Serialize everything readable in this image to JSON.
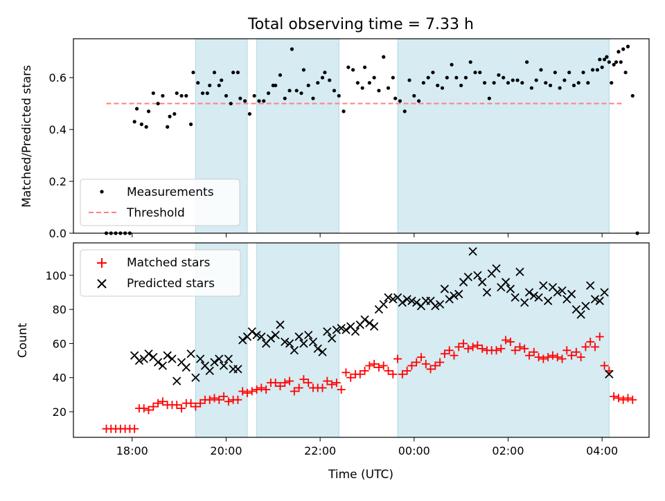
{
  "figure": {
    "title": "Total observing time = 7.33 h",
    "xlabel": "Time (UTC)",
    "xticks": [
      "18:00",
      "20:00",
      "22:00",
      "00:00",
      "02:00",
      "04:00"
    ],
    "xtick_hours": [
      18,
      20,
      22,
      24,
      26,
      28
    ],
    "xlim": [
      16.75,
      29.0
    ],
    "shaded_intervals": [
      [
        19.35,
        20.45
      ],
      [
        20.65,
        22.4
      ],
      [
        23.65,
        28.15
      ]
    ],
    "shade_color": "#add8e6"
  },
  "chart_data": [
    {
      "type": "scatter",
      "ylabel": "Matched/Predicted stars",
      "ylim": [
        0,
        0.75
      ],
      "yticks": [
        0.0,
        0.2,
        0.4,
        0.6
      ],
      "ytick_labels": [
        "0.0",
        "0.2",
        "0.4",
        "0.6"
      ],
      "legend": {
        "placement": "lower-left",
        "entries": [
          "Measurements",
          "Threshold"
        ]
      },
      "threshold": {
        "name": "Threshold",
        "value": 0.5,
        "x_range": [
          17.45,
          28.45
        ],
        "color": "#ff7f7f"
      },
      "series": [
        {
          "name": "Measurements",
          "color": "#000000",
          "x": [
            17.45,
            17.55,
            17.65,
            17.75,
            17.85,
            17.95,
            18.05,
            18.1,
            18.2,
            18.3,
            18.35,
            18.45,
            18.55,
            18.65,
            18.75,
            18.8,
            18.9,
            18.95,
            19.05,
            19.15,
            19.25,
            19.3,
            19.4,
            19.5,
            19.6,
            19.65,
            19.75,
            19.85,
            19.9,
            20.0,
            20.1,
            20.15,
            20.25,
            20.3,
            20.4,
            20.5,
            20.6,
            20.7,
            20.8,
            20.9,
            21.0,
            21.05,
            21.15,
            21.25,
            21.35,
            21.4,
            21.5,
            21.6,
            21.65,
            21.75,
            21.85,
            21.95,
            22.05,
            22.1,
            22.2,
            22.3,
            22.4,
            22.5,
            22.6,
            22.7,
            22.8,
            22.9,
            22.95,
            23.05,
            23.15,
            23.25,
            23.35,
            23.45,
            23.55,
            23.6,
            23.7,
            23.8,
            23.9,
            24.0,
            24.1,
            24.2,
            24.3,
            24.4,
            24.5,
            24.6,
            24.7,
            24.8,
            24.9,
            25.0,
            25.1,
            25.2,
            25.3,
            25.4,
            25.5,
            25.6,
            25.7,
            25.8,
            25.9,
            26.0,
            26.1,
            26.2,
            26.3,
            26.4,
            26.5,
            26.6,
            26.7,
            26.8,
            26.9,
            27.0,
            27.1,
            27.2,
            27.3,
            27.4,
            27.5,
            27.6,
            27.7,
            27.8,
            27.9,
            28.0,
            28.1,
            28.2,
            28.3,
            28.4,
            28.5
          ],
          "y": [
            0.0,
            0.0,
            0.0,
            0.0,
            0.0,
            0.0,
            0.43,
            0.48,
            0.42,
            0.41,
            0.47,
            0.54,
            0.5,
            0.53,
            0.41,
            0.45,
            0.46,
            0.54,
            0.53,
            0.53,
            0.42,
            0.62,
            0.58,
            0.54,
            0.54,
            0.57,
            0.62,
            0.57,
            0.59,
            0.53,
            0.5,
            0.62,
            0.62,
            0.52,
            0.51,
            0.46,
            0.53,
            0.51,
            0.51,
            0.54,
            0.57,
            0.57,
            0.61,
            0.52,
            0.55,
            0.71,
            0.55,
            0.54,
            0.63,
            0.57,
            0.52,
            0.58,
            0.6,
            0.62,
            0.59,
            0.55,
            0.53,
            0.47,
            0.64,
            0.63,
            0.58,
            0.56,
            0.64,
            0.58,
            0.6,
            0.55,
            0.68,
            0.56,
            0.6,
            0.52,
            0.51,
            0.47,
            0.59,
            0.53,
            0.51,
            0.58,
            0.6,
            0.62,
            0.57,
            0.56,
            0.6,
            0.65,
            0.6,
            0.57,
            0.6,
            0.66,
            0.62,
            0.62,
            0.58,
            0.52,
            0.58,
            0.61,
            0.6,
            0.58,
            0.59,
            0.59,
            0.58,
            0.66,
            0.56,
            0.59,
            0.63,
            0.58,
            0.57,
            0.62,
            0.56,
            0.59,
            0.62,
            0.57,
            0.58,
            0.62,
            0.58,
            0.63,
            0.63,
            0.64,
            0.68,
            0.58,
            0.66,
            0.66,
            0.62
          ],
          "x_extra": [
            27.95,
            28.05,
            28.15,
            28.25,
            28.35,
            28.45,
            28.55,
            28.65,
            28.75
          ],
          "y_extra": [
            0.67,
            0.67,
            0.66,
            0.65,
            0.7,
            0.71,
            0.72,
            0.53,
            0.0
          ]
        }
      ]
    },
    {
      "type": "scatter",
      "ylabel": "Count",
      "ylim": [
        5,
        119
      ],
      "yticks": [
        20,
        40,
        60,
        80,
        100
      ],
      "ytick_labels": [
        "20",
        "40",
        "60",
        "80",
        "100"
      ],
      "legend": {
        "placement": "top-left",
        "entries": [
          "Matched stars",
          "Predicted stars"
        ]
      },
      "series": [
        {
          "name": "Matched stars",
          "marker": "plus",
          "color": "#ff0000",
          "x": [
            17.45,
            17.55,
            17.65,
            17.75,
            17.85,
            17.95,
            18.05,
            18.15,
            18.25,
            18.35,
            18.45,
            18.55,
            18.65,
            18.75,
            18.85,
            18.95,
            19.05,
            19.15,
            19.25,
            19.35,
            19.45,
            19.55,
            19.65,
            19.75,
            19.85,
            19.95,
            20.05,
            20.15,
            20.25,
            20.35,
            20.45,
            20.55,
            20.65,
            20.75,
            20.85,
            20.95,
            21.05,
            21.15,
            21.25,
            21.35,
            21.45,
            21.55,
            21.65,
            21.75,
            21.85,
            21.95,
            22.05,
            22.15,
            22.25,
            22.35,
            22.45,
            22.55,
            22.65,
            22.75,
            22.85,
            22.95,
            23.05,
            23.15,
            23.25,
            23.35,
            23.45,
            23.55,
            23.65,
            23.75,
            23.85,
            23.95,
            24.05,
            24.15,
            24.25,
            24.35,
            24.45,
            24.55,
            24.65,
            24.75,
            24.85,
            24.95,
            25.05,
            25.15,
            25.25,
            25.35,
            25.45,
            25.55,
            25.65,
            25.75,
            25.85,
            25.95,
            26.05,
            26.15,
            26.25,
            26.35,
            26.45,
            26.55,
            26.65,
            26.75,
            26.85,
            26.95,
            27.05,
            27.15,
            27.25,
            27.35,
            27.45,
            27.55,
            27.65,
            27.75,
            27.85,
            27.95,
            28.05,
            28.15,
            28.25,
            28.35,
            28.45
          ],
          "y": [
            10,
            10,
            10,
            10,
            10,
            10,
            10,
            22,
            22,
            21,
            23,
            25,
            26,
            24,
            24,
            24,
            22,
            25,
            25,
            23,
            25,
            27,
            27,
            28,
            27,
            29,
            26,
            27,
            27,
            32,
            31,
            32,
            33,
            34,
            33,
            37,
            37,
            35,
            37,
            38,
            32,
            34,
            39,
            37,
            34,
            34,
            34,
            38,
            36,
            37,
            33,
            43,
            40,
            42,
            42,
            44,
            47,
            48,
            46,
            47,
            44,
            42,
            51,
            42,
            44,
            47,
            49,
            52,
            48,
            45,
            47,
            49,
            54,
            56,
            53,
            58,
            60,
            57,
            58,
            59,
            57,
            56,
            56,
            56,
            57,
            62,
            61,
            56,
            58,
            57,
            53,
            55,
            52,
            51,
            52,
            53,
            52,
            51,
            56,
            53,
            55,
            52,
            58,
            61,
            58,
            64,
            47,
            44,
            29,
            28,
            27
          ],
          "x_extra": [
            28.55,
            28.65
          ],
          "y_extra": [
            28,
            27
          ]
        },
        {
          "name": "Predicted stars",
          "marker": "x",
          "color": "#000000",
          "x": [
            18.05,
            18.15,
            18.25,
            18.35,
            18.45,
            18.55,
            18.65,
            18.75,
            18.85,
            18.95,
            19.05,
            19.15,
            19.25,
            19.35,
            19.45,
            19.55,
            19.65,
            19.75,
            19.85,
            19.95,
            20.05,
            20.15,
            20.25,
            20.35,
            20.45,
            20.55,
            20.65,
            20.75,
            20.85,
            20.95,
            21.05,
            21.15,
            21.25,
            21.35,
            21.45,
            21.55,
            21.65,
            21.75,
            21.85,
            21.95,
            22.05,
            22.15,
            22.25,
            22.35,
            22.45,
            22.55,
            22.65,
            22.75,
            22.85,
            22.95,
            23.05,
            23.15,
            23.25,
            23.35,
            23.45,
            23.55,
            23.65,
            23.75,
            23.85,
            23.95,
            24.05,
            24.15,
            24.25,
            24.35,
            24.45,
            24.55,
            24.65,
            24.75,
            24.85,
            24.95,
            25.05,
            25.15,
            25.25,
            25.35,
            25.45,
            25.55,
            25.65,
            25.75,
            25.85,
            25.95,
            26.05,
            26.15,
            26.25,
            26.35,
            26.45,
            26.55,
            26.65,
            26.75,
            26.85,
            26.95,
            27.05,
            27.15,
            27.25,
            27.35,
            27.45,
            27.55,
            27.65,
            27.75,
            27.85,
            27.95,
            28.05,
            28.15
          ],
          "y": [
            53,
            50,
            51,
            54,
            52,
            49,
            47,
            53,
            51,
            38,
            49,
            46,
            54,
            40,
            51,
            47,
            44,
            49,
            51,
            47,
            51,
            45,
            45,
            62,
            64,
            67,
            65,
            64,
            60,
            63,
            65,
            71,
            61,
            60,
            56,
            64,
            60,
            65,
            61,
            57,
            55,
            67,
            63,
            68,
            69,
            68,
            70,
            67,
            71,
            74,
            72,
            70,
            80,
            83,
            87,
            86,
            87,
            84,
            86,
            85,
            84,
            82,
            85,
            85,
            82,
            83,
            92,
            86,
            88,
            89,
            96,
            99,
            114,
            100,
            96,
            90,
            101,
            104,
            93,
            96,
            92,
            87,
            102,
            84,
            90,
            88,
            87,
            94,
            85,
            93,
            90,
            91,
            86,
            89,
            80,
            77,
            82,
            94,
            86,
            85,
            90,
            42
          ]
        }
      ]
    }
  ]
}
